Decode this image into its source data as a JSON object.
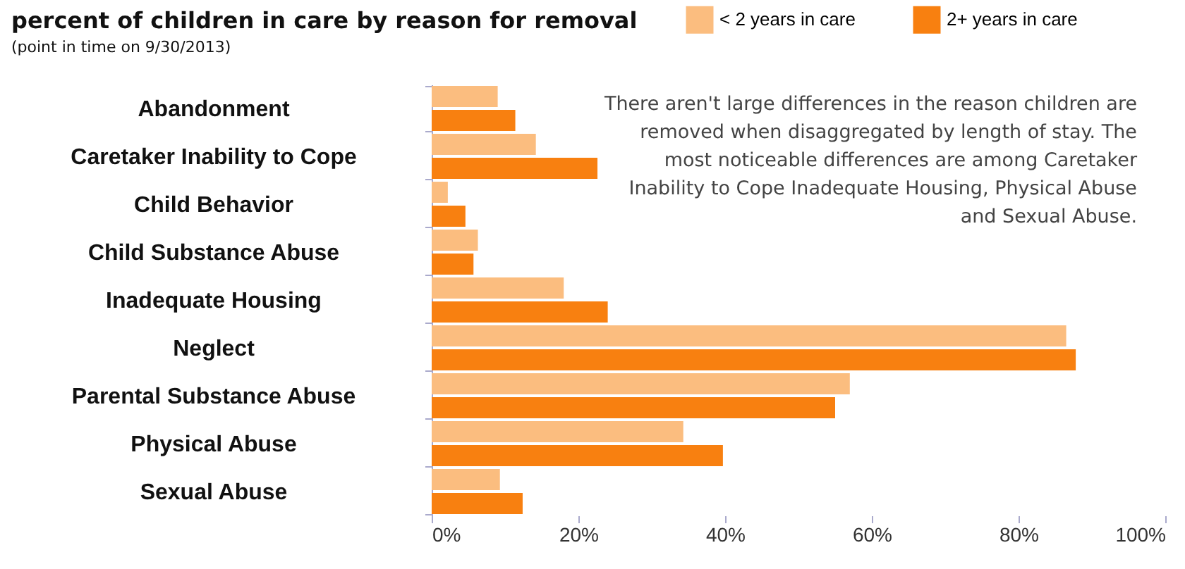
{
  "chart_data": {
    "type": "bar",
    "orientation": "horizontal",
    "title": "percent of children in care by reason for removal",
    "subtitle": "(point in time on 9/30/2013)",
    "categories": [
      "Abandonment",
      "Caretaker Inability to Cope",
      "Child Behavior",
      "Child Substance Abuse",
      "Inadequate Housing",
      "Neglect",
      "Parental Substance Abuse",
      "Physical Abuse",
      "Sexual Abuse"
    ],
    "series": [
      {
        "name": "< 2 years in care",
        "color": "#fbbd7f",
        "values": [
          9,
          14.2,
          2.2,
          6.3,
          18,
          86.5,
          57,
          34.3,
          9.3
        ]
      },
      {
        "name": "2+ years in care",
        "color": "#f88010",
        "values": [
          11.4,
          22.6,
          4.6,
          5.7,
          24,
          87.8,
          55,
          39.7,
          12.4
        ]
      }
    ],
    "xlim": [
      0,
      100
    ],
    "xticks": [
      {
        "value": 0,
        "label": "0%"
      },
      {
        "value": 20,
        "label": "20%"
      },
      {
        "value": 40,
        "label": "40%"
      },
      {
        "value": 60,
        "label": "60%"
      },
      {
        "value": 80,
        "label": "80%"
      },
      {
        "value": 100,
        "label": "100%"
      }
    ],
    "legend": "top right",
    "annotations": [
      "There aren't large differences in the reason children are removed when disaggregated by length of stay. The most noticeable differences are among Caretaker Inability to Cope Inadequate Housing, Physical Abuse and Sexual Abuse."
    ]
  }
}
